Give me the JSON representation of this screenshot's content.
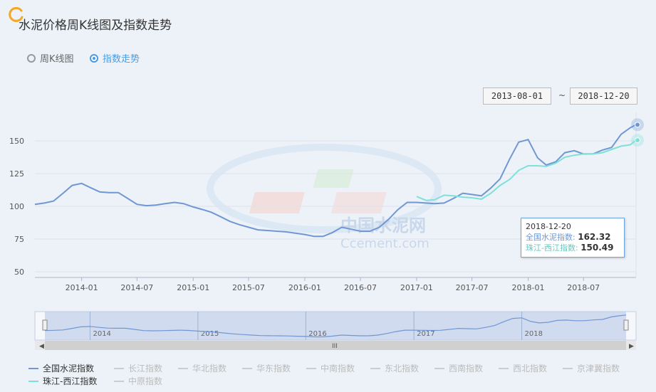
{
  "header": {
    "title": "水泥价格周K线图及指数走势"
  },
  "radios": [
    {
      "label": "周K线图",
      "selected": false
    },
    {
      "label": "指数走势",
      "selected": true
    }
  ],
  "range": {
    "start": "2013-08-01",
    "separator": "~",
    "end": "2018-12-20"
  },
  "watermark": {
    "line1": "中国水泥网",
    "line2": "Ccement.com"
  },
  "tooltip": {
    "date": "2018-12-20",
    "s1_label": "全国水泥指数:",
    "s1_value": "162.32",
    "s2_label": "珠江-西江指数:",
    "s2_value": "150.49"
  },
  "navigator": {
    "labels": [
      "2014",
      "2015",
      "2016",
      "2017",
      "2018"
    ],
    "scroll_grip": "III"
  },
  "legend": {
    "row1": [
      "全国水泥指数",
      "长江指数",
      "华北指数",
      "华东指数",
      "中南指数",
      "东北指数",
      "西南指数",
      "西北指数",
      "京津冀指数"
    ],
    "row2": [
      "珠江-西江指数",
      "中原指数"
    ],
    "active_color_1": "#6f97d4",
    "active_color_2": "#7fe0d8",
    "inactive_color": "#cccccc"
  },
  "chart_data": {
    "type": "line",
    "title": "",
    "xlabel": "",
    "ylabel": "",
    "x_tick_labels": [
      "2014-01",
      "2014-07",
      "2015-01",
      "2015-07",
      "2016-01",
      "2016-07",
      "2017-01",
      "2017-07",
      "2018-01",
      "2018-07"
    ],
    "y_tick_labels": [
      "50",
      "75",
      "100",
      "125",
      "150"
    ],
    "ylim": [
      50,
      160
    ],
    "xlim": [
      "2013-08-01",
      "2018-12-20"
    ],
    "grid": true,
    "legend_position": "bottom",
    "series": [
      {
        "name": "全国水泥指数",
        "color": "#6f97d4",
        "points": [
          [
            "2013-08-01",
            101.5
          ],
          [
            "2013-09-01",
            102.5
          ],
          [
            "2013-10-01",
            104
          ],
          [
            "2013-11-01",
            110
          ],
          [
            "2013-12-01",
            116
          ],
          [
            "2014-01-01",
            117.5
          ],
          [
            "2014-02-01",
            114
          ],
          [
            "2014-03-01",
            111
          ],
          [
            "2014-04-01",
            110.5
          ],
          [
            "2014-05-01",
            110.5
          ],
          [
            "2014-06-01",
            106
          ],
          [
            "2014-07-01",
            101.5
          ],
          [
            "2014-08-01",
            100.5
          ],
          [
            "2014-09-01",
            101
          ],
          [
            "2014-10-01",
            102
          ],
          [
            "2014-11-01",
            103
          ],
          [
            "2014-12-01",
            102
          ],
          [
            "2015-01-01",
            99.5
          ],
          [
            "2015-02-01",
            97.5
          ],
          [
            "2015-03-01",
            95.5
          ],
          [
            "2015-04-01",
            92
          ],
          [
            "2015-05-01",
            88.5
          ],
          [
            "2015-06-01",
            86
          ],
          [
            "2015-07-01",
            84
          ],
          [
            "2015-08-01",
            82
          ],
          [
            "2015-09-01",
            81.5
          ],
          [
            "2015-10-01",
            81
          ],
          [
            "2015-11-01",
            80.5
          ],
          [
            "2015-12-01",
            79.5
          ],
          [
            "2016-01-01",
            78.5
          ],
          [
            "2016-02-01",
            77
          ],
          [
            "2016-03-01",
            77
          ],
          [
            "2016-04-01",
            80
          ],
          [
            "2016-05-01",
            84
          ],
          [
            "2016-06-01",
            82.5
          ],
          [
            "2016-07-01",
            81
          ],
          [
            "2016-08-01",
            81
          ],
          [
            "2016-09-01",
            84
          ],
          [
            "2016-10-01",
            90
          ],
          [
            "2016-11-01",
            97.5
          ],
          [
            "2016-12-01",
            103
          ],
          [
            "2017-01-01",
            103
          ],
          [
            "2017-02-01",
            102.5
          ],
          [
            "2017-03-01",
            102
          ],
          [
            "2017-04-01",
            102.5
          ],
          [
            "2017-05-01",
            106
          ],
          [
            "2017-06-01",
            110
          ],
          [
            "2017-07-01",
            109
          ],
          [
            "2017-08-01",
            108
          ],
          [
            "2017-09-01",
            114
          ],
          [
            "2017-10-01",
            121
          ],
          [
            "2017-11-01",
            136
          ],
          [
            "2017-12-01",
            149
          ],
          [
            "2018-01-01",
            151
          ],
          [
            "2018-02-01",
            137
          ],
          [
            "2018-03-01",
            131.5
          ],
          [
            "2018-04-01",
            134
          ],
          [
            "2018-05-01",
            141
          ],
          [
            "2018-06-01",
            142.5
          ],
          [
            "2018-07-01",
            140
          ],
          [
            "2018-08-01",
            140
          ],
          [
            "2018-09-01",
            143
          ],
          [
            "2018-10-01",
            145
          ],
          [
            "2018-11-01",
            155
          ],
          [
            "2018-12-01",
            160
          ],
          [
            "2018-12-20",
            162.32
          ]
        ]
      },
      {
        "name": "珠江-西江指数",
        "color": "#7fe0d8",
        "points": [
          [
            "2017-01-01",
            107.5
          ],
          [
            "2017-02-01",
            104.5
          ],
          [
            "2017-03-01",
            105
          ],
          [
            "2017-04-01",
            108.5
          ],
          [
            "2017-05-01",
            108
          ],
          [
            "2017-06-01",
            107
          ],
          [
            "2017-07-01",
            106.5
          ],
          [
            "2017-08-01",
            105.5
          ],
          [
            "2017-09-01",
            110
          ],
          [
            "2017-10-01",
            116
          ],
          [
            "2017-11-01",
            120.5
          ],
          [
            "2017-12-01",
            127.5
          ],
          [
            "2018-01-01",
            131
          ],
          [
            "2018-02-01",
            131
          ],
          [
            "2018-03-01",
            130.5
          ],
          [
            "2018-04-01",
            133
          ],
          [
            "2018-05-01",
            137.5
          ],
          [
            "2018-06-01",
            139
          ],
          [
            "2018-07-01",
            140
          ],
          [
            "2018-08-01",
            140
          ],
          [
            "2018-09-01",
            141
          ],
          [
            "2018-10-01",
            143.5
          ],
          [
            "2018-11-01",
            146
          ],
          [
            "2018-12-01",
            147
          ],
          [
            "2018-12-20",
            150.49
          ]
        ]
      }
    ]
  }
}
